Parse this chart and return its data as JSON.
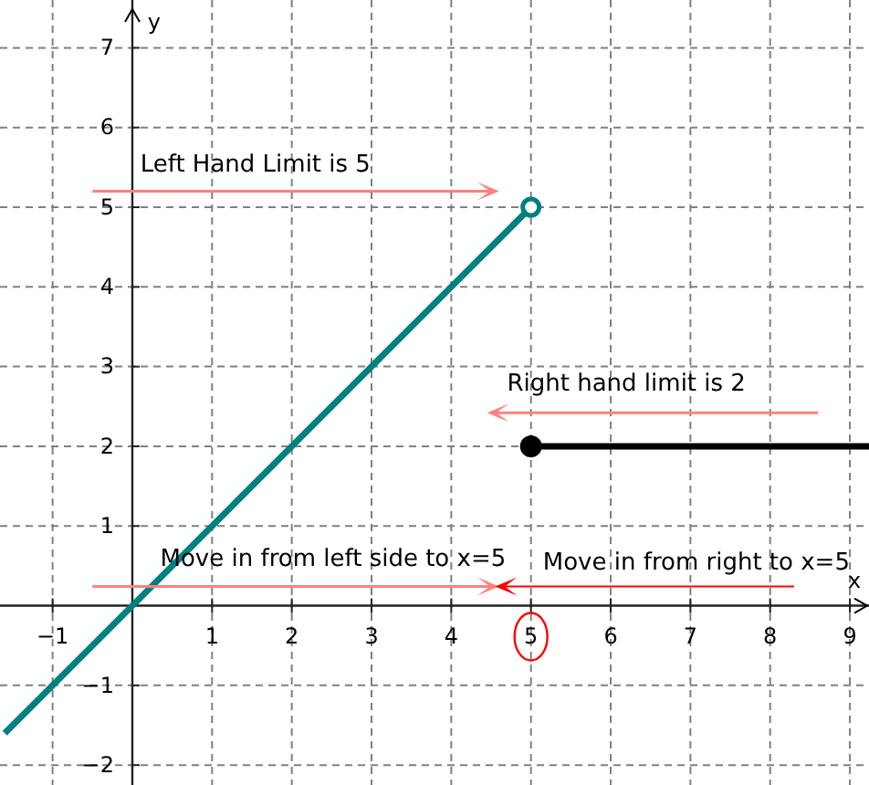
{
  "chart_data": {
    "type": "line",
    "xlabel": "x",
    "ylabel": "y",
    "xlim": [
      -1.66,
      9.24
    ],
    "ylim": [
      -2.25,
      7.6
    ],
    "xticks": [
      -1,
      1,
      2,
      3,
      4,
      5,
      6,
      7,
      8,
      9
    ],
    "yticks": [
      -2,
      -1,
      1,
      2,
      3,
      4,
      5,
      6,
      7
    ],
    "grid": true,
    "line_style": "solid",
    "series": [
      {
        "type": "line",
        "color": "#008080",
        "x": [
          -1.6,
          5
        ],
        "values": [
          -1.6,
          5
        ]
      },
      {
        "type": "line",
        "color": "#000000",
        "x": [
          5,
          9.24
        ],
        "values": [
          2,
          2
        ]
      },
      {
        "type": "scatter",
        "color": "#008080",
        "x": [
          5
        ],
        "values": [
          5
        ],
        "marker": "circle"
      },
      {
        "type": "scatter",
        "color": "#000000",
        "x": [
          5
        ],
        "values": [
          2
        ],
        "marker": "circle"
      }
    ],
    "annotations": [
      "Left Hand Limit is 5",
      "Right hand limit is 2",
      "Move in from left side to x=5",
      "Move in from right to x=5"
    ]
  }
}
